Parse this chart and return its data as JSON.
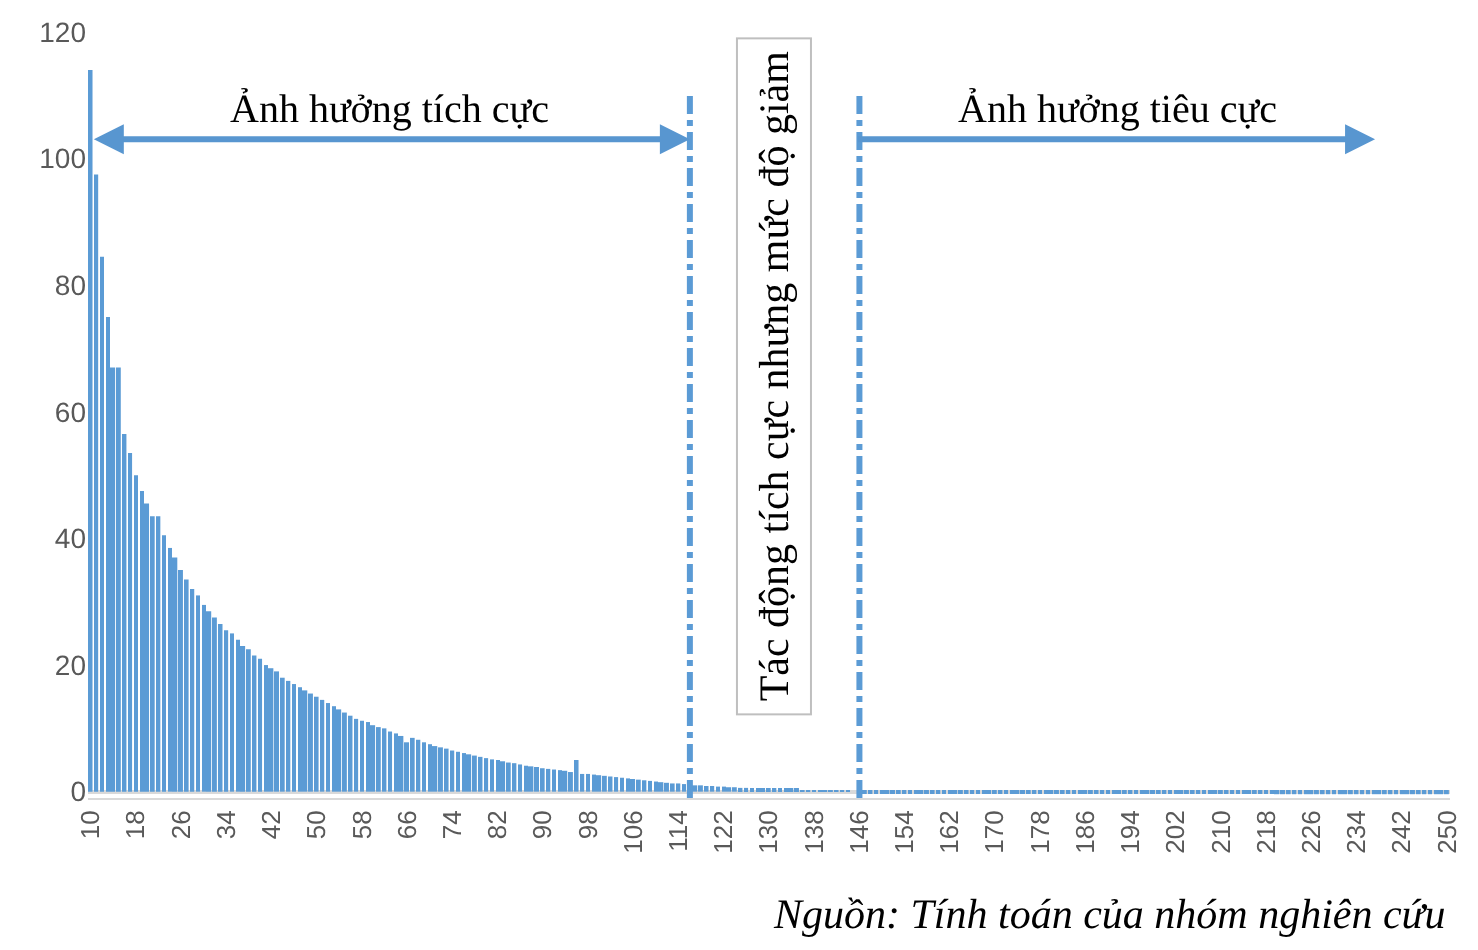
{
  "chart_data": {
    "type": "bar",
    "color": "#5b9bd5",
    "x": [
      10,
      11,
      12,
      13,
      14,
      15,
      16,
      17,
      18,
      19,
      20,
      21,
      22,
      23,
      24,
      25,
      26,
      27,
      28,
      29,
      30,
      31,
      32,
      33,
      34,
      35,
      36,
      37,
      38,
      39,
      40,
      41,
      42,
      43,
      44,
      45,
      46,
      47,
      48,
      49,
      50,
      51,
      52,
      53,
      54,
      55,
      56,
      57,
      58,
      59,
      60,
      61,
      62,
      63,
      64,
      65,
      66,
      67,
      68,
      69,
      70,
      71,
      72,
      73,
      74,
      75,
      76,
      77,
      78,
      79,
      80,
      81,
      82,
      83,
      84,
      85,
      86,
      87,
      88,
      89,
      90,
      91,
      92,
      93,
      94,
      95,
      96,
      97,
      98,
      99,
      100,
      101,
      102,
      103,
      104,
      105,
      106,
      107,
      108,
      109,
      110,
      111,
      112,
      113,
      114,
      115,
      116,
      117,
      118,
      119,
      120,
      121,
      122,
      123,
      124,
      125,
      126,
      127,
      128,
      129,
      130,
      131,
      132,
      133,
      134,
      135,
      136,
      137,
      138,
      139,
      140,
      141,
      142,
      143,
      144,
      145,
      146,
      147,
      148,
      149,
      150,
      151,
      152,
      153,
      154,
      155,
      156,
      157,
      158,
      159,
      160,
      161,
      162,
      163,
      164,
      165,
      166,
      167,
      168,
      169,
      170,
      171,
      172,
      173,
      174,
      175,
      176,
      177,
      178,
      179,
      180,
      181,
      182,
      183,
      184,
      185,
      186,
      187,
      188,
      189,
      190,
      191,
      192,
      193,
      194,
      195,
      196,
      197,
      198,
      199,
      200,
      201,
      202,
      203,
      204,
      205,
      206,
      207,
      208,
      209,
      210,
      211,
      212,
      213,
      214,
      215,
      216,
      217,
      218,
      219,
      220,
      221,
      222,
      223,
      224,
      225,
      226,
      227,
      228,
      229,
      230,
      231,
      232,
      233,
      234,
      235,
      236,
      237,
      238,
      239,
      240,
      241,
      242,
      243,
      244,
      245,
      246,
      247,
      248,
      249,
      250
    ],
    "values": [
      114,
      97.5,
      84.5,
      75,
      67,
      67,
      56.5,
      53.5,
      50,
      47.5,
      45.5,
      43.5,
      43.5,
      40.5,
      38.5,
      37,
      35,
      33.5,
      32,
      31,
      29.5,
      28.5,
      27.5,
      26.5,
      25.5,
      25,
      24,
      23,
      22.5,
      21.5,
      21,
      20,
      19.5,
      19,
      18,
      17.5,
      17,
      16.5,
      16,
      15.5,
      15,
      14.5,
      14,
      13.5,
      13,
      12.5,
      12,
      11.5,
      11.2,
      11,
      10.5,
      10.2,
      10,
      9.5,
      9.2,
      8.8,
      7.8,
      8.5,
      8.2,
      7.8,
      7.5,
      7.2,
      7,
      6.8,
      6.5,
      6.3,
      6.1,
      5.9,
      5.7,
      5.5,
      5.3,
      5.1,
      5,
      4.8,
      4.6,
      4.5,
      4.3,
      4.1,
      4,
      3.9,
      3.7,
      3.6,
      3.5,
      3.4,
      3.3,
      3.1,
      5,
      2.8,
      2.8,
      2.7,
      2.6,
      2.5,
      2.4,
      2.3,
      2.2,
      2.1,
      2,
      1.9,
      1.8,
      1.7,
      1.6,
      1.5,
      1.4,
      1.3,
      1.3,
      1.2,
      1.1,
      1,
      1,
      0.9,
      0.9,
      0.8,
      0.8,
      0.7,
      0.7,
      0.6,
      0.6,
      0.5,
      0.5,
      0.5,
      0.4,
      0.4,
      0.4,
      0.3,
      0.3,
      0.3,
      0.2,
      0.2,
      0.2,
      0.2,
      0.1,
      0.1,
      0.1,
      0.1,
      0.1,
      0,
      0,
      -0.1,
      -0.1,
      -0.1,
      -0.1,
      -0.1,
      -0.1,
      -0.1,
      -0.1,
      -0.1,
      -0.1,
      -0.1,
      -0.1,
      -0.1,
      -0.2,
      -0.2,
      -0.2,
      -0.2,
      -0.2,
      -0.2,
      -0.2,
      -0.2,
      -0.2,
      -0.2,
      -0.2,
      -0.2,
      -0.2,
      -0.2,
      -0.2,
      -0.2,
      -0.2,
      -0.2,
      -0.2,
      -0.2,
      -0.2,
      -0.2,
      -0.2,
      -0.2,
      -0.2,
      -0.2,
      -0.2,
      -0.2,
      -0.2,
      -0.2,
      -0.3,
      -0.3,
      -0.3,
      -0.3,
      -0.3,
      -0.3,
      -0.3,
      -0.3,
      -0.3,
      -0.3,
      -0.3,
      -0.3,
      -0.3,
      -0.3,
      -0.3,
      -0.3,
      -0.3,
      -0.3,
      -0.3,
      -0.3,
      -0.3,
      -0.3,
      -0.3,
      -0.3,
      -0.3,
      -0.3,
      -0.3,
      -0.3,
      -0.3,
      -0.3,
      -0.4,
      -0.4,
      -0.4,
      -0.4,
      -0.4,
      -0.4,
      -0.4,
      -0.4,
      -0.4,
      -0.4,
      -0.4,
      -0.4,
      -0.4,
      -0.4,
      -0.4,
      -0.4,
      -0.4,
      -0.4,
      -0.4,
      -0.4,
      -0.4,
      -0.4,
      -0.4,
      -0.4,
      -0.4,
      -0.4,
      -0.4,
      -0.4,
      -0.4,
      -0.4,
      -0.4
    ],
    "xlim": [
      9.5,
      250.5
    ],
    "xticks": [
      10,
      18,
      26,
      34,
      42,
      50,
      58,
      66,
      74,
      82,
      90,
      98,
      106,
      114,
      122,
      130,
      138,
      146,
      154,
      162,
      170,
      178,
      186,
      194,
      202,
      210,
      218,
      226,
      234,
      242,
      250
    ],
    "ylim": [
      -1,
      120
    ],
    "yticks": [
      0,
      20,
      40,
      60,
      80,
      100,
      120
    ],
    "ref_lines": [
      {
        "axis": "x",
        "value": 116,
        "color": "#5b9bd5",
        "line_style": "dashdot"
      },
      {
        "axis": "x",
        "value": 146,
        "color": "#5b9bd5",
        "line_style": "dashdot"
      }
    ],
    "annotations": [
      "Ảnh hưởng tích cực",
      "Tác động tích cực nhưng mức độ giảm",
      "Ảnh hưởng tiêu cực",
      "Nguồn: Tính toán của nhóm nghiên cứu"
    ]
  }
}
